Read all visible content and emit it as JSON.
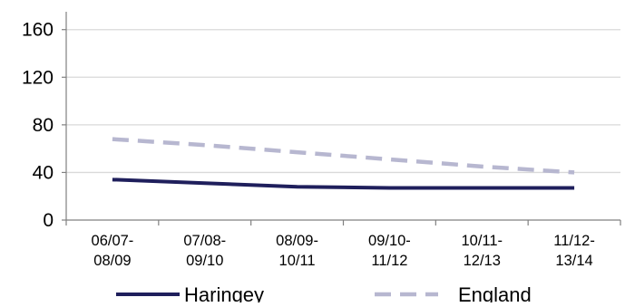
{
  "chart_data": {
    "type": "line",
    "categories": [
      "06/07-\n08/09",
      "07/08-\n09/10",
      "08/09-\n10/11",
      "09/10-\n11/12",
      "10/11-\n12/13",
      "11/12-\n13/14"
    ],
    "series": [
      {
        "name": "Haringey",
        "values": [
          34,
          31,
          28,
          27,
          27,
          27
        ],
        "color": "#1f1f5c",
        "style": "solid"
      },
      {
        "name": "England",
        "values": [
          68,
          63,
          57,
          51,
          45,
          40
        ],
        "color": "#b7b7d0",
        "style": "dashed"
      }
    ],
    "yticks": [
      0,
      40,
      80,
      120,
      160
    ],
    "ylim": [
      0,
      175
    ],
    "grid": true,
    "legend": "bottom",
    "colors": {
      "axis": "#808080",
      "grid": "#d9d9d9",
      "text": "#000000"
    }
  }
}
